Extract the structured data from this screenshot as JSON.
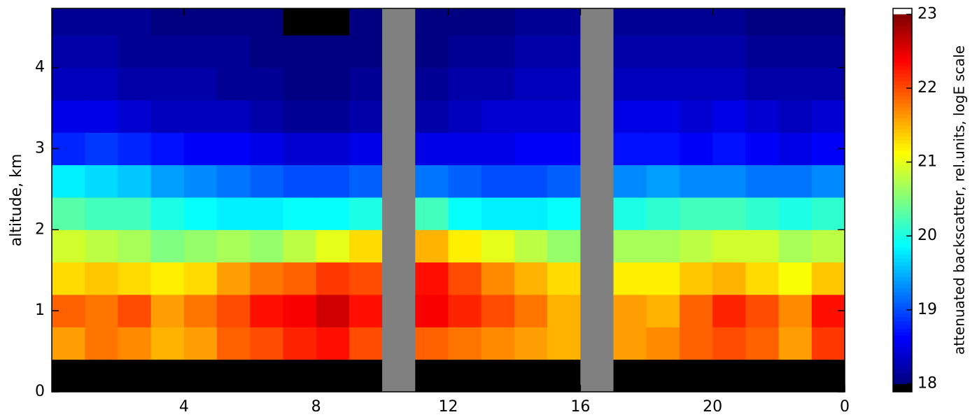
{
  "chart_data": {
    "type": "heatmap",
    "ylabel": "altitude, km",
    "colorbar_label": "attenuated backscatter, rel.units, logE scale",
    "colormap": "jet",
    "missing_color": "#808080",
    "under_color": "#000000",
    "over_color": "#ffffff",
    "xlim": [
      0,
      24
    ],
    "xticks": [
      4,
      8,
      12,
      16,
      20,
      {
        "value": 24,
        "label": "0"
      }
    ],
    "ylim": [
      0,
      4.73
    ],
    "yticks": [
      0,
      1,
      2,
      3,
      4
    ],
    "clim": [
      17.89,
      23.08
    ],
    "cticks": [
      18,
      19,
      20,
      21,
      22,
      23
    ],
    "x": [
      0.5,
      1.5,
      2.5,
      3.5,
      4.5,
      5.5,
      6.5,
      7.5,
      8.5,
      9.5,
      10.5,
      11.5,
      12.5,
      13.5,
      14.5,
      15.5,
      16.5,
      17.5,
      18.5,
      19.5,
      20.5,
      21.5,
      22.5,
      23.5
    ],
    "y": [
      0.2,
      0.6,
      1.0,
      1.4,
      1.8,
      2.2,
      2.6,
      3.0,
      3.4,
      3.8,
      4.2,
      4.6
    ],
    "z": [
      [
        17.8,
        17.8,
        17.8,
        17.8,
        17.8,
        17.8,
        17.8,
        17.8,
        17.8,
        17.8,
        null,
        17.8,
        17.8,
        17.8,
        17.8,
        17.8,
        null,
        17.8,
        17.8,
        17.8,
        17.8,
        17.8,
        17.8,
        17.8
      ],
      [
        21.6,
        21.8,
        21.7,
        21.5,
        21.6,
        21.9,
        22.0,
        22.2,
        22.3,
        22.0,
        null,
        21.9,
        21.8,
        21.7,
        21.6,
        21.5,
        null,
        21.6,
        21.7,
        21.9,
        22.0,
        21.9,
        21.6,
        22.1
      ],
      [
        21.9,
        21.8,
        22.0,
        21.6,
        21.8,
        22.0,
        22.3,
        22.4,
        22.6,
        22.3,
        null,
        22.4,
        22.2,
        22.0,
        21.8,
        21.5,
        null,
        21.6,
        21.5,
        21.9,
        22.2,
        22.0,
        21.7,
        22.3
      ],
      [
        21.3,
        21.4,
        21.3,
        21.2,
        21.3,
        21.6,
        21.8,
        21.9,
        22.1,
        22.0,
        null,
        22.3,
        22.0,
        21.7,
        21.5,
        21.3,
        null,
        21.2,
        21.2,
        21.4,
        21.5,
        21.3,
        21.1,
        21.4
      ],
      [
        20.9,
        20.8,
        20.7,
        20.5,
        20.6,
        20.7,
        20.6,
        20.8,
        21.0,
        21.3,
        null,
        21.5,
        21.2,
        21.0,
        20.8,
        20.6,
        null,
        20.7,
        20.7,
        20.8,
        20.9,
        20.9,
        20.7,
        20.8
      ],
      [
        20.3,
        20.2,
        20.2,
        20.0,
        19.9,
        19.8,
        19.8,
        19.9,
        19.9,
        20.0,
        null,
        20.2,
        19.9,
        19.8,
        19.8,
        19.9,
        null,
        20.0,
        20.1,
        20.2,
        20.2,
        20.1,
        20.0,
        20.1
      ],
      [
        19.8,
        19.7,
        19.6,
        19.4,
        19.3,
        19.2,
        19.1,
        19.0,
        19.0,
        19.1,
        null,
        19.2,
        19.1,
        19.0,
        19.0,
        19.1,
        null,
        19.3,
        19.4,
        19.3,
        19.3,
        19.2,
        19.2,
        19.3
      ],
      [
        18.8,
        18.9,
        18.8,
        18.7,
        18.6,
        18.6,
        18.5,
        18.4,
        18.4,
        18.5,
        null,
        18.5,
        18.5,
        18.5,
        18.6,
        18.6,
        null,
        18.7,
        18.7,
        18.6,
        18.7,
        18.6,
        18.5,
        18.6
      ],
      [
        18.5,
        18.5,
        18.4,
        18.3,
        18.3,
        18.3,
        18.2,
        18.1,
        18.1,
        18.2,
        null,
        18.2,
        18.3,
        18.4,
        18.4,
        18.4,
        null,
        18.5,
        18.5,
        18.4,
        18.5,
        18.4,
        18.3,
        18.4
      ],
      [
        18.3,
        18.3,
        18.2,
        18.2,
        18.2,
        18.1,
        18.1,
        18.0,
        18.0,
        18.1,
        null,
        18.1,
        18.2,
        18.2,
        18.3,
        18.3,
        null,
        18.3,
        18.3,
        18.3,
        18.3,
        18.2,
        18.2,
        18.2
      ],
      [
        18.2,
        18.2,
        18.1,
        18.1,
        18.1,
        18.1,
        18.0,
        18.0,
        18.0,
        18.0,
        null,
        18.0,
        18.1,
        18.1,
        18.2,
        18.2,
        null,
        18.2,
        18.2,
        18.2,
        18.2,
        18.1,
        18.1,
        18.1
      ],
      [
        18.1,
        18.1,
        18.1,
        18.0,
        18.0,
        18.0,
        18.0,
        17.95,
        17.95,
        18.0,
        null,
        18.0,
        18.0,
        18.0,
        18.1,
        18.1,
        null,
        18.1,
        18.1,
        18.1,
        18.1,
        18.0,
        18.0,
        18.0
      ]
    ]
  }
}
